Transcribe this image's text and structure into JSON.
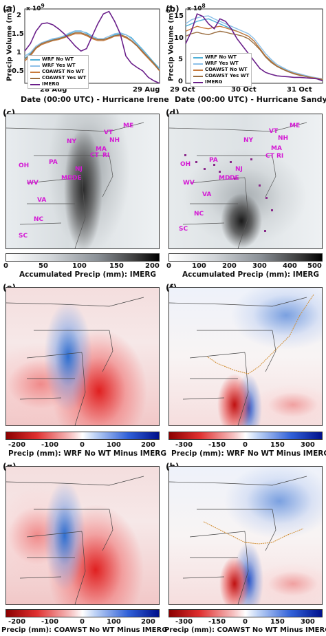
{
  "colors": {
    "wrf_no": "#4fb0d8",
    "wrf_yes": "#8cc0e8",
    "coawst_no": "#c87a3c",
    "coawst_yes": "#9a6d3f",
    "imerg": "#6a1f8a",
    "state_label": "#d41ad4"
  },
  "panels": {
    "a": {
      "label": "(a)",
      "xlabel": "Date (00:00 UTC) - Hurricane Irene",
      "ylabel": "Precip Volume (m",
      "ylabel_sup": "3",
      "ylabel_end": ")",
      "exponent": "x 10",
      "exponent_sup": "9",
      "yticks": [
        "2",
        "1.5",
        "1",
        "0.5"
      ],
      "xticks": [
        "28 Aug",
        "29 Aug"
      ]
    },
    "b": {
      "label": "(b)",
      "xlabel": "Date (00:00 UTC) - Hurricane Sandy",
      "ylabel": "Precip Volume (m",
      "ylabel_sup": "3",
      "ylabel_end": ")",
      "exponent": "x 10",
      "exponent_sup": "8",
      "yticks": [
        "15",
        "10",
        "5",
        "0"
      ],
      "xticks": [
        "29 Oct",
        "30 Oct",
        "31 Oct"
      ]
    },
    "c": {
      "label": "(c)",
      "cb_title": "Accumulated Precip (mm): IMERG",
      "cb_ticks": [
        "0",
        "50",
        "100",
        "150",
        "200"
      ],
      "states": [
        "ME",
        "VT",
        "NH",
        "NY",
        "MA",
        "CT",
        "RI",
        "PA",
        "NJ",
        "OH",
        "MD",
        "DE",
        "WV",
        "VA",
        "NC",
        "SC"
      ]
    },
    "d": {
      "label": "(d)",
      "cb_title": "Accumulated Precip (mm): IMERG",
      "cb_ticks": [
        "0",
        "100",
        "200",
        "300",
        "400",
        "500"
      ],
      "states": [
        "ME",
        "VT",
        "NH",
        "NY",
        "MA",
        "CT",
        "RI",
        "OH",
        "PA",
        "NJ",
        "MD",
        "DE",
        "WV",
        "VA",
        "NC",
        "SC"
      ]
    },
    "e": {
      "label": "(e)",
      "cb_title": "Precip (mm): WRF No WT Minus IMERG",
      "cb_ticks": [
        "-200",
        "-100",
        "0",
        "100",
        "200"
      ]
    },
    "f": {
      "label": "(f)",
      "cb_title": "Precip (mm): WRF No WT Minus IMERG",
      "cb_ticks": [
        "-300",
        "-150",
        "0",
        "150",
        "300"
      ]
    },
    "g": {
      "label": "(g)",
      "cb_title": "Precip (mm): COAWST No WT Minus IMERG",
      "cb_ticks": [
        "-200",
        "-100",
        "0",
        "100",
        "200"
      ]
    },
    "h": {
      "label": "(h)",
      "cb_title": "Precip (mm): COAWST No WT Minus IMERG",
      "cb_ticks": [
        "-300",
        "-150",
        "0",
        "150",
        "300"
      ]
    }
  },
  "legend": [
    "WRF No WT",
    "WRF Yes WT",
    "COAWST No WT",
    "COAWST Yes WT",
    "IMERG"
  ],
  "chart_data": [
    {
      "type": "line",
      "title": "",
      "xlabel": "Date (00:00 UTC) - Hurricane Irene",
      "ylabel": "Precip Volume (m3)",
      "ylim": [
        0.5,
        2.0
      ],
      "y_scale_factor": "1e9",
      "x": [
        0,
        1,
        2,
        3,
        4,
        5,
        6,
        7,
        8,
        9,
        10,
        11,
        12,
        13,
        14,
        15,
        16,
        17,
        18,
        19,
        20,
        21,
        22,
        23,
        24
      ],
      "series": [
        {
          "name": "WRF No WT",
          "values": [
            1.0,
            1.1,
            1.22,
            1.3,
            1.35,
            1.38,
            1.4,
            1.44,
            1.5,
            1.55,
            1.55,
            1.52,
            1.45,
            1.4,
            1.38,
            1.42,
            1.48,
            1.5,
            1.48,
            1.42,
            1.3,
            1.18,
            1.05,
            0.92,
            0.8
          ]
        },
        {
          "name": "WRF Yes WT",
          "values": [
            1.05,
            1.12,
            1.25,
            1.32,
            1.36,
            1.4,
            1.42,
            1.46,
            1.52,
            1.56,
            1.56,
            1.5,
            1.44,
            1.4,
            1.4,
            1.45,
            1.5,
            1.52,
            1.48,
            1.4,
            1.28,
            1.16,
            1.03,
            0.9,
            0.78
          ]
        },
        {
          "name": "COAWST No WT",
          "values": [
            0.95,
            1.05,
            1.2,
            1.28,
            1.32,
            1.36,
            1.38,
            1.42,
            1.46,
            1.5,
            1.5,
            1.46,
            1.4,
            1.36,
            1.36,
            1.4,
            1.45,
            1.46,
            1.42,
            1.35,
            1.25,
            1.12,
            1.0,
            0.88,
            0.75
          ]
        },
        {
          "name": "COAWST Yes WT",
          "values": [
            0.98,
            1.08,
            1.22,
            1.3,
            1.34,
            1.37,
            1.4,
            1.43,
            1.48,
            1.52,
            1.52,
            1.48,
            1.42,
            1.38,
            1.38,
            1.42,
            1.46,
            1.48,
            1.44,
            1.36,
            1.26,
            1.14,
            1.02,
            0.9,
            0.76
          ]
        },
        {
          "name": "IMERG",
          "values": [
            1.15,
            1.3,
            1.55,
            1.7,
            1.72,
            1.68,
            1.6,
            1.5,
            1.38,
            1.25,
            1.15,
            1.2,
            1.45,
            1.7,
            1.9,
            1.95,
            1.75,
            1.5,
            1.05,
            0.9,
            0.82,
            0.75,
            0.62,
            0.55,
            0.5
          ]
        }
      ]
    },
    {
      "type": "line",
      "title": "",
      "xlabel": "Date (00:00 UTC) - Hurricane Sandy",
      "ylabel": "Precip Volume (m3)",
      "ylim": [
        0,
        15
      ],
      "y_scale_factor": "1e8",
      "x": [
        0,
        1,
        2,
        3,
        4,
        5,
        6,
        7,
        8,
        9,
        10,
        11,
        12,
        13,
        14,
        15,
        16,
        17,
        18,
        19,
        20,
        21,
        22,
        23,
        24
      ],
      "series": [
        {
          "name": "WRF No WT",
          "values": [
            11.5,
            12.0,
            12.5,
            12.8,
            13.0,
            12.5,
            12.0,
            11.5,
            11.0,
            10.5,
            10.0,
            9.5,
            8.5,
            7.0,
            5.5,
            4.5,
            3.5,
            3.0,
            2.5,
            2.0,
            1.8,
            1.5,
            1.2,
            1.0,
            0.8
          ]
        },
        {
          "name": "WRF Yes WT",
          "values": [
            12.0,
            12.8,
            13.2,
            13.5,
            13.6,
            13.0,
            12.5,
            12.0,
            11.5,
            11.0,
            10.5,
            10.0,
            9.0,
            7.5,
            6.0,
            4.8,
            3.8,
            3.2,
            2.6,
            2.2,
            1.9,
            1.6,
            1.3,
            1.1,
            0.9
          ]
        },
        {
          "name": "COAWST No WT",
          "values": [
            10.5,
            11.0,
            11.5,
            11.2,
            11.0,
            11.3,
            11.5,
            11.2,
            10.8,
            10.5,
            10.0,
            9.5,
            8.5,
            7.0,
            5.5,
            4.4,
            3.5,
            2.9,
            2.4,
            2.0,
            1.7,
            1.4,
            1.2,
            1.0,
            0.8
          ]
        },
        {
          "name": "COAWST Yes WT",
          "values": [
            9.5,
            10.0,
            10.3,
            10.0,
            9.8,
            10.2,
            10.5,
            10.3,
            10.0,
            9.8,
            9.5,
            9.0,
            8.0,
            6.8,
            5.3,
            4.2,
            3.4,
            2.8,
            2.3,
            1.9,
            1.6,
            1.4,
            1.1,
            0.9,
            0.7
          ]
        },
        {
          "name": "IMERG",
          "values": [
            8.0,
            10.5,
            14.0,
            13.5,
            12.0,
            11.0,
            13.0,
            12.5,
            11.0,
            9.0,
            7.5,
            6.0,
            4.5,
            3.0,
            2.2,
            1.8,
            1.5,
            1.4,
            1.3,
            1.2,
            1.2,
            1.1,
            1.0,
            0.9,
            0.5
          ]
        }
      ]
    }
  ]
}
